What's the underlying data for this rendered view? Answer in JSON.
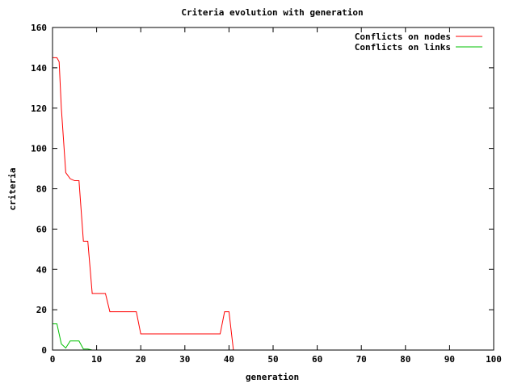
{
  "chart_data": {
    "type": "line",
    "title": "Criteria evolution with generation",
    "xlabel": "generation",
    "ylabel": "criteria",
    "xlim": [
      0,
      100
    ],
    "ylim": [
      0,
      160
    ],
    "xticks": [
      0,
      10,
      20,
      30,
      40,
      50,
      60,
      70,
      80,
      90,
      100
    ],
    "yticks": [
      0,
      20,
      40,
      60,
      80,
      100,
      120,
      140,
      160
    ],
    "grid": false,
    "legend_position": "top-right",
    "series": [
      {
        "name": "Conflicts on nodes",
        "color": "#ff0000",
        "x": [
          0,
          1,
          1.5,
          2,
          3,
          4,
          5,
          6,
          7,
          8,
          9,
          10,
          11,
          12,
          13,
          14,
          15,
          16,
          17,
          18,
          19,
          20,
          25,
          30,
          35,
          38,
          39,
          40,
          41
        ],
        "y": [
          145,
          145,
          143,
          120,
          88,
          85,
          84,
          84,
          54,
          54,
          28,
          28,
          28,
          28,
          19,
          19,
          19,
          19,
          19,
          19,
          19,
          8,
          8,
          8,
          8,
          8,
          19,
          19,
          0
        ]
      },
      {
        "name": "Conflicts on links",
        "color": "#00c000",
        "x": [
          0,
          0.5,
          1,
          2,
          3,
          4,
          5,
          6,
          7,
          8,
          9
        ],
        "y": [
          13,
          13,
          13,
          3,
          1,
          4.5,
          4.5,
          4.5,
          0.5,
          0.5,
          0
        ]
      }
    ]
  }
}
